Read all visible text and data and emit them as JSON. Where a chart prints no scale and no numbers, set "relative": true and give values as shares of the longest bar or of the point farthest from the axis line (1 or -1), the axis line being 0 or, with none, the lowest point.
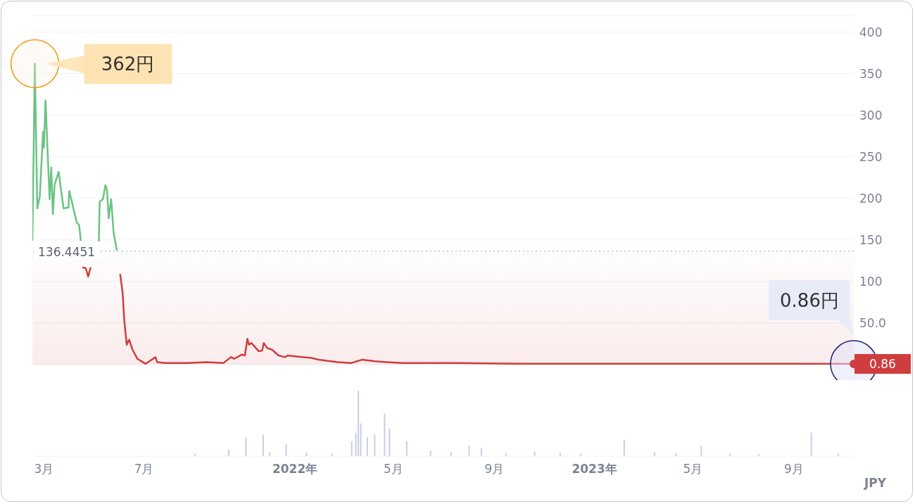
{
  "chart_data": [
    {
      "type": "area",
      "x": [
        "2021-02-15",
        "2021-02-18",
        "2021-02-21",
        "2021-02-24",
        "2021-02-28",
        "2021-03-01",
        "2021-03-03",
        "2021-03-08",
        "2021-03-10",
        "2021-03-12",
        "2021-03-14",
        "2021-03-19",
        "2021-03-25",
        "2021-03-31",
        "2021-04-01",
        "2021-04-10",
        "2021-04-13",
        "2021-04-15",
        "2021-04-16",
        "2021-04-17",
        "2021-04-21",
        "2021-04-24",
        "2021-04-27",
        "2021-05-04",
        "2021-05-05",
        "2021-05-06",
        "2021-05-07",
        "2021-05-08",
        "2021-05-12",
        "2021-05-15",
        "2021-05-17",
        "2021-05-19",
        "2021-05-22",
        "2021-05-25",
        "2021-05-29",
        "2021-06-02",
        "2021-06-05",
        "2021-06-07",
        "2021-06-10",
        "2021-06-13",
        "2021-06-17",
        "2021-06-23",
        "2021-07-03",
        "2021-07-15",
        "2021-07-17",
        "2021-07-27",
        "2021-08-23",
        "2021-09-15",
        "2021-10-06",
        "2021-10-15",
        "2021-10-19",
        "2021-10-28",
        "2021-11-01",
        "2021-11-04",
        "2021-11-06",
        "2021-11-09",
        "2021-11-18",
        "2021-11-22",
        "2021-11-24",
        "2021-11-28",
        "2021-12-04",
        "2021-12-12",
        "2021-12-20",
        "2021-12-23",
        "2022-01-01",
        "2022-01-21",
        "2022-01-30",
        "2022-02-22",
        "2022-03-11",
        "2022-03-24",
        "2022-04-09",
        "2022-04-23",
        "2022-05-13",
        "2022-07-18",
        "2022-10-01",
        "2023-01-01",
        "2023-05-01",
        "2023-09-01",
        "2023-11-13"
      ],
      "series": [
        {
          "color": "#6cc283",
          "values": [
            149,
            362,
            188,
            202,
            280,
            261,
            318,
            199,
            237,
            181,
            216,
            232,
            188,
            189,
            209,
            171,
            168,
            149,
            null,
            null,
            null,
            null,
            null,
            null,
            null,
            null,
            148,
            196,
            199,
            216,
            210,
            176,
            199,
            159,
            137,
            null,
            null,
            null,
            null,
            null,
            null,
            null,
            null,
            null,
            null,
            null,
            null,
            null,
            null,
            null,
            null,
            null,
            null,
            null,
            null,
            null,
            null,
            null,
            null,
            null,
            null,
            null,
            null,
            null,
            null,
            null,
            null,
            null,
            null,
            null,
            null,
            null,
            null,
            null,
            null,
            null,
            null,
            null,
            null
          ]
        },
        {
          "type": "line",
          "color": "#cf3d3f",
          "values": [
            null,
            null,
            null,
            null,
            null,
            null,
            null,
            null,
            null,
            null,
            null,
            null,
            null,
            null,
            null,
            null,
            null,
            null,
            null,
            117,
            116,
            106,
            117,
            null,
            null,
            null,
            null,
            null,
            null,
            null,
            null,
            null,
            null,
            null,
            null,
            109,
            86,
            53,
            24,
            30,
            18,
            7,
            1,
            9,
            3,
            2,
            2,
            3,
            2,
            9,
            7,
            12,
            11,
            31,
            24,
            26,
            16,
            17,
            26,
            20,
            18,
            11,
            9,
            11,
            10,
            8,
            6,
            3,
            2,
            6,
            4,
            3,
            2,
            2,
            1,
            1,
            1,
            1,
            0.86
          ]
        }
      ],
      "xlim": [
        "2021-02-15",
        "2023-11-13"
      ],
      "ylim": [
        0,
        420
      ],
      "yticks": [
        {
          "value": 0,
          "label": null
        },
        {
          "value": 50,
          "label": "50.0"
        },
        100,
        150,
        200,
        250,
        300,
        350,
        400
      ],
      "tick_labels": "y",
      "grid": "y",
      "ref_lines": [
        {
          "axis": "y",
          "value": 136.4451,
          "label": "136.4451",
          "color": "#a0a4b0",
          "line_style": "dotted"
        }
      ],
      "bands": [
        {
          "axis": "y",
          "from": 0,
          "to": 136.4451,
          "color": "#cf3d3f"
        }
      ],
      "annotations": [
        "362円",
        {
          "text": "0.86円",
          "x": "2023-11-13",
          "y": 0.86
        },
        {
          "text": "0.86",
          "x": "2023-11-13",
          "y": 0.86
        }
      ]
    },
    {
      "type": "bar",
      "relative": true,
      "color": "#c9cde6",
      "xlabel": "JPY",
      "x": [
        "2021-09-01",
        "2021-10-12",
        "2021-11-02",
        "2021-11-23",
        "2021-12-01",
        "2021-12-21",
        "2022-01-15",
        "2022-02-15",
        "2022-03-11",
        "2022-03-16",
        "2022-03-19",
        "2022-03-22",
        "2022-03-30",
        "2022-04-08",
        "2022-04-20",
        "2022-04-26",
        "2022-05-17",
        "2022-06-15",
        "2022-07-10",
        "2022-08-01",
        "2022-08-16",
        "2022-09-15",
        "2022-10-20",
        "2022-11-20",
        "2022-12-15",
        "2023-02-06",
        "2023-03-15",
        "2023-04-10",
        "2023-05-11",
        "2023-06-15",
        "2023-07-20",
        "2023-09-22",
        "2023-10-25"
      ],
      "values": [
        0.04,
        0.1,
        0.29,
        0.33,
        0.06,
        0.18,
        0.05,
        0.04,
        0.23,
        0.36,
        1,
        0.5,
        0.29,
        0.33,
        0.65,
        0.42,
        0.23,
        0.08,
        0.06,
        0.16,
        0.12,
        0.05,
        0.07,
        0.05,
        0.04,
        0.25,
        0.06,
        0.05,
        0.16,
        0.04,
        0.03,
        0.36,
        0.04
      ],
      "xlim": [
        "2021-02-15",
        "2023-11-13"
      ],
      "xticks": [
        {
          "value": "2021-03-01",
          "label": "3月"
        },
        {
          "value": "2021-07-01",
          "label": "7月"
        },
        {
          "value": "2022-01-01",
          "label": "2022年"
        },
        {
          "value": "2022-05-01",
          "label": "5月"
        },
        {
          "value": "2022-09-01",
          "label": "9月"
        },
        {
          "value": "2023-01-01",
          "label": "2023年"
        },
        {
          "value": "2023-05-01",
          "label": "5月"
        },
        {
          "value": "2023-09-01",
          "label": "9月"
        }
      ],
      "tick_labels": "x"
    }
  ]
}
